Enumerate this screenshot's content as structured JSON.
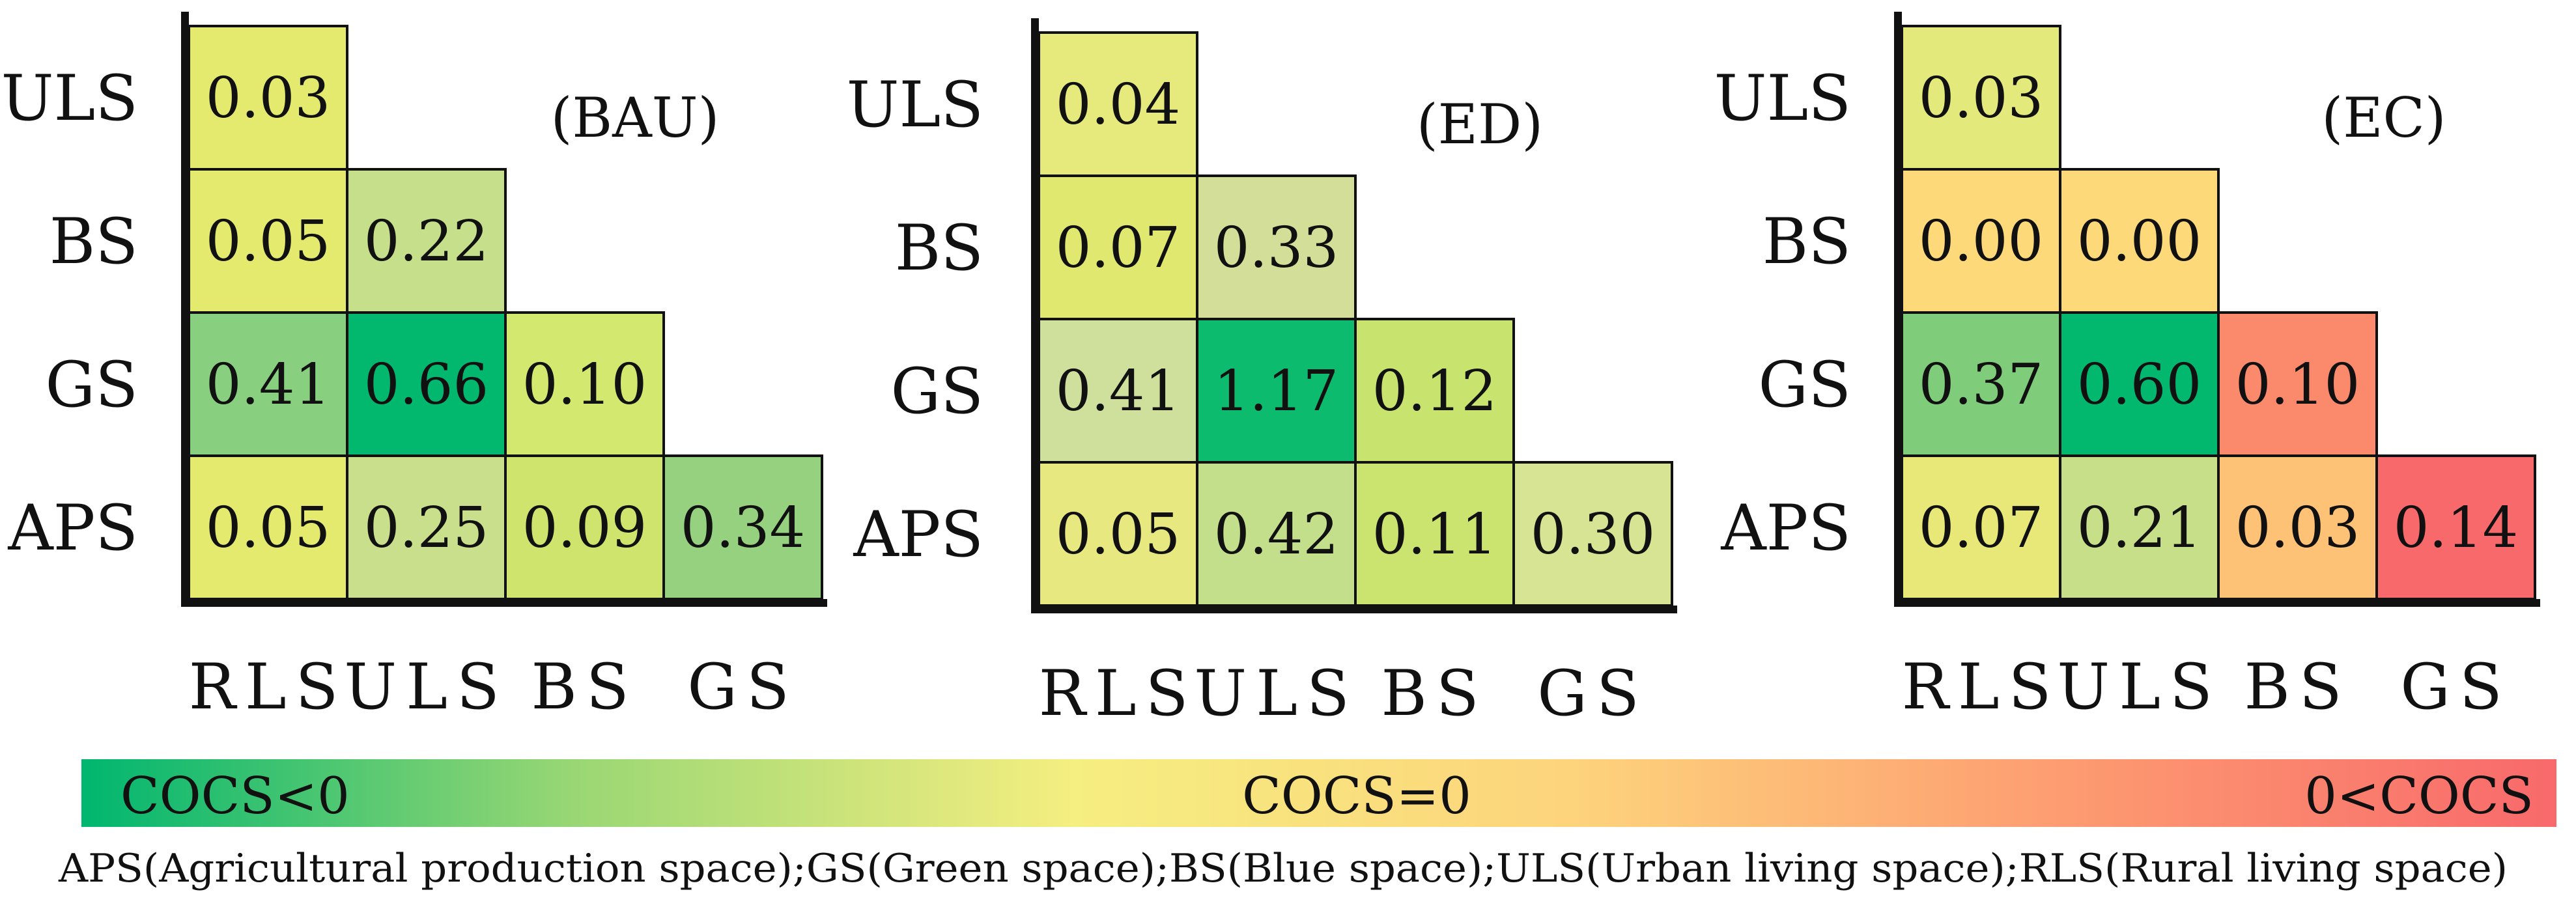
{
  "chart_data": {
    "type": "heatmap",
    "row_labels": [
      "ULS",
      "BS",
      "GS",
      "APS"
    ],
    "column_labels": [
      "RLS",
      "ULS",
      "BS",
      "GS"
    ],
    "panels": [
      {
        "scenario": "(BAU)",
        "cells": [
          {
            "row": "ULS",
            "col": "RLS",
            "label": "0.03",
            "value": 0.03,
            "color": "#e3ea6e"
          },
          {
            "row": "BS",
            "col": "RLS",
            "label": "0.05",
            "value": 0.05,
            "color": "#e3ea6e"
          },
          {
            "row": "BS",
            "col": "ULS",
            "label": "0.22",
            "value": 0.22,
            "color": "#c6df8b"
          },
          {
            "row": "GS",
            "col": "RLS",
            "label": "0.41",
            "value": 0.41,
            "color": "#88d07f"
          },
          {
            "row": "GS",
            "col": "ULS",
            "label": "0.66",
            "value": 0.66,
            "color": "#02b86f"
          },
          {
            "row": "GS",
            "col": "BS",
            "label": "0.10",
            "value": 0.1,
            "color": "#d3e86e"
          },
          {
            "row": "APS",
            "col": "RLS",
            "label": "0.05",
            "value": 0.05,
            "color": "#e3ea6e"
          },
          {
            "row": "APS",
            "col": "ULS",
            "label": "0.25",
            "value": 0.25,
            "color": "#c9df8c"
          },
          {
            "row": "APS",
            "col": "BS",
            "label": "0.09",
            "value": 0.09,
            "color": "#cfe46d"
          },
          {
            "row": "APS",
            "col": "GS",
            "label": "0.34",
            "value": 0.34,
            "color": "#96d17f"
          }
        ]
      },
      {
        "scenario": "(ED)",
        "cells": [
          {
            "row": "ULS",
            "col": "RLS",
            "label": "0.04",
            "value": 0.04,
            "color": "#e6e97c"
          },
          {
            "row": "BS",
            "col": "RLS",
            "label": "0.07",
            "value": 0.07,
            "color": "#e1e86f"
          },
          {
            "row": "BS",
            "col": "ULS",
            "label": "0.33",
            "value": 0.33,
            "color": "#d3df98"
          },
          {
            "row": "GS",
            "col": "RLS",
            "label": "0.41",
            "value": 0.41,
            "color": "#cfe09c"
          },
          {
            "row": "GS",
            "col": "ULS",
            "label": "1.17",
            "value": 1.17,
            "color": "#0dbb6f"
          },
          {
            "row": "GS",
            "col": "BS",
            "label": "0.12",
            "value": 0.12,
            "color": "#c8e46e"
          },
          {
            "row": "APS",
            "col": "RLS",
            "label": "0.05",
            "value": 0.05,
            "color": "#e8e881"
          },
          {
            "row": "APS",
            "col": "ULS",
            "label": "0.42",
            "value": 0.42,
            "color": "#c4df8c"
          },
          {
            "row": "APS",
            "col": "BS",
            "label": "0.11",
            "value": 0.11,
            "color": "#cbe36f"
          },
          {
            "row": "APS",
            "col": "GS",
            "label": "0.30",
            "value": 0.3,
            "color": "#d7e493"
          }
        ]
      },
      {
        "scenario": "(EC)",
        "cells": [
          {
            "row": "ULS",
            "col": "RLS",
            "label": "0.03",
            "value": 0.03,
            "color": "#e3e97a"
          },
          {
            "row": "BS",
            "col": "RLS",
            "label": "0.00",
            "value": 0.0,
            "color": "#fdd97a"
          },
          {
            "row": "BS",
            "col": "ULS",
            "label": "0.00",
            "value": 0.0,
            "color": "#fdd97a"
          },
          {
            "row": "GS",
            "col": "RLS",
            "label": "0.37",
            "value": 0.37,
            "color": "#7fcd7b"
          },
          {
            "row": "GS",
            "col": "ULS",
            "label": "0.60",
            "value": 0.6,
            "color": "#02b86f"
          },
          {
            "row": "GS",
            "col": "BS",
            "label": "0.10",
            "value": 0.1,
            "color": "#fb8a6d"
          },
          {
            "row": "APS",
            "col": "RLS",
            "label": "0.07",
            "value": 0.07,
            "color": "#e8e878"
          },
          {
            "row": "APS",
            "col": "ULS",
            "label": "0.21",
            "value": 0.21,
            "color": "#c8df89"
          },
          {
            "row": "APS",
            "col": "BS",
            "label": "0.03",
            "value": 0.03,
            "color": "#fec276"
          },
          {
            "row": "APS",
            "col": "GS",
            "label": "0.14",
            "value": 0.14,
            "color": "#f8696b"
          }
        ]
      }
    ],
    "colorbar": {
      "labels": [
        "COCS<0",
        "COCS=0",
        "0<COCS"
      ],
      "colors": [
        "#00b66f",
        "#9ad774",
        "#f5ee80",
        "#fdd47c",
        "#fd9c71",
        "#f8696b"
      ]
    },
    "footnote": "APS(Agricultural production space);GS(Green space);BS(Blue space);ULS(Urban living space);RLS(Rural living space)"
  }
}
